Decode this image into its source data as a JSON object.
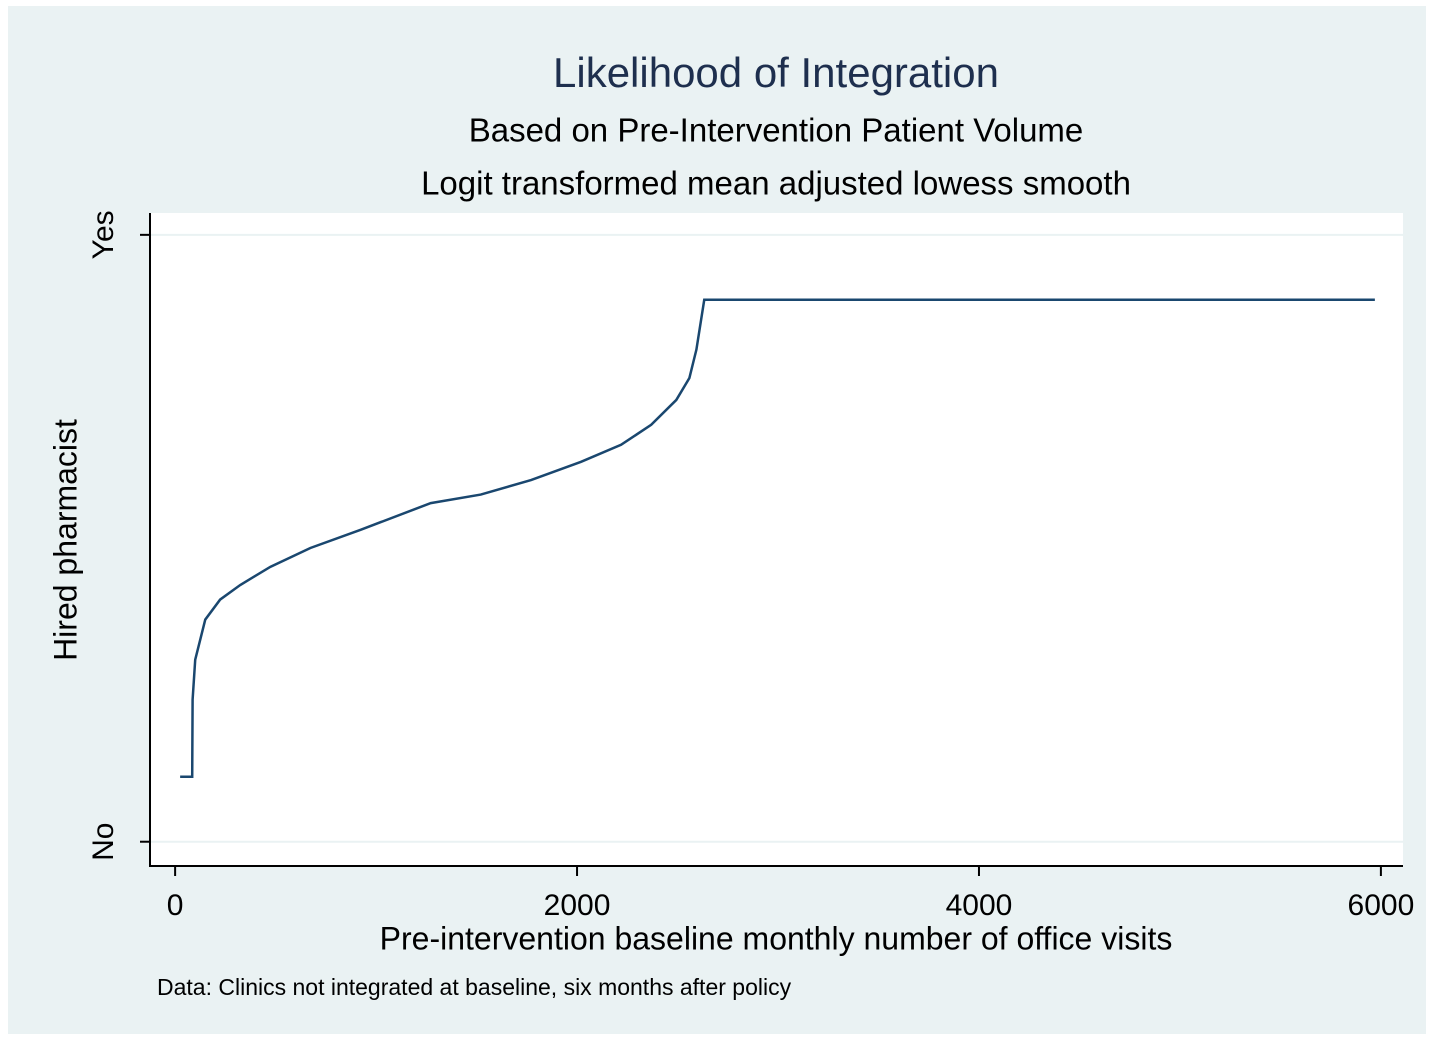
{
  "chart_data": {
    "type": "line",
    "title": "Likelihood of Integration",
    "subtitles": [
      "Based on Pre-Intervention Patient Volume",
      "Logit transformed mean adjusted lowess smooth"
    ],
    "x_label": "Pre-intervention baseline monthly number of office visits",
    "y_label": "Hired pharmacist",
    "note": "Data: Clinics not integrated at baseline, six months after policy",
    "x": [
      25,
      85,
      87,
      100,
      150,
      224,
      324,
      474,
      673,
      923,
      1272,
      1521,
      1771,
      2020,
      2219,
      2369,
      2494,
      2559,
      2594,
      2633,
      5970
    ],
    "series": [
      {
        "color": "#1a476f",
        "values": [
          0.107,
          0.107,
          0.234,
          0.3,
          0.366,
          0.399,
          0.423,
          0.453,
          0.484,
          0.514,
          0.558,
          0.572,
          0.596,
          0.626,
          0.654,
          0.687,
          0.728,
          0.764,
          0.811,
          0.893,
          0.893
        ]
      }
    ],
    "xlim": [
      -125,
      6110
    ],
    "xticks": [
      0,
      2000,
      4000,
      6000
    ],
    "ylim": [
      -0.04,
      1.036
    ],
    "yticks": [
      {
        "value": 0,
        "label": "No"
      },
      {
        "value": 1,
        "label": "Yes"
      }
    ],
    "grid": true
  }
}
